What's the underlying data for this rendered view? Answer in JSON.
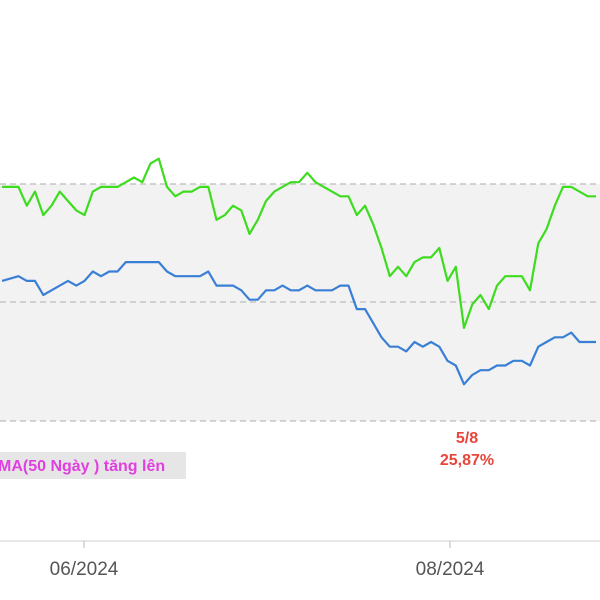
{
  "chart_data": {
    "type": "line",
    "colors": {
      "series_upper": "#3ddc1f",
      "series_lower": "#3a7fd6",
      "band_fill": "#f2f2f2",
      "gridline": "#bbbbbb",
      "annotation": "#e8453c",
      "legend_text": "#e040e0",
      "legend_bg": "#e6e6e6"
    },
    "x_ticks": [
      "06/2024",
      "08/2024"
    ],
    "annotation": {
      "date": "5/8",
      "value": "25,87%"
    },
    "legend_text": "MA(50 Ngày ) tăng lên",
    "y_range": [
      0,
      100
    ],
    "series": [
      {
        "key": "upper",
        "values": [
          [
            0,
            73
          ],
          [
            2,
            73
          ],
          [
            3,
            69
          ],
          [
            4,
            72
          ],
          [
            5,
            67
          ],
          [
            6,
            69
          ],
          [
            7,
            72
          ],
          [
            8,
            70
          ],
          [
            9,
            68
          ],
          [
            10,
            67
          ],
          [
            11,
            72
          ],
          [
            12,
            73
          ],
          [
            13,
            73
          ],
          [
            14,
            73
          ],
          [
            15,
            74
          ],
          [
            16,
            75
          ],
          [
            17,
            74
          ],
          [
            18,
            78
          ],
          [
            19,
            79
          ],
          [
            20,
            73
          ],
          [
            21,
            71
          ],
          [
            22,
            72
          ],
          [
            23,
            72
          ],
          [
            24,
            73
          ],
          [
            25,
            73
          ],
          [
            26,
            66
          ],
          [
            27,
            67
          ],
          [
            28,
            69
          ],
          [
            29,
            68
          ],
          [
            30,
            63
          ],
          [
            31,
            66
          ],
          [
            32,
            70
          ],
          [
            33,
            72
          ],
          [
            34,
            73
          ],
          [
            35,
            74
          ],
          [
            36,
            74
          ],
          [
            37,
            76
          ],
          [
            38,
            74
          ],
          [
            39,
            73
          ],
          [
            40,
            72
          ],
          [
            41,
            71
          ],
          [
            42,
            71
          ],
          [
            43,
            67
          ],
          [
            44,
            69
          ],
          [
            45,
            65
          ],
          [
            46,
            60
          ],
          [
            47,
            54
          ],
          [
            48,
            56
          ],
          [
            49,
            54
          ],
          [
            50,
            57
          ],
          [
            51,
            58
          ],
          [
            52,
            58
          ],
          [
            53,
            60
          ],
          [
            54,
            53
          ],
          [
            55,
            56
          ],
          [
            56,
            43
          ],
          [
            57,
            48
          ],
          [
            58,
            50
          ],
          [
            59,
            47
          ],
          [
            60,
            52
          ],
          [
            61,
            54
          ],
          [
            62,
            54
          ],
          [
            63,
            54
          ],
          [
            64,
            51
          ],
          [
            65,
            61
          ],
          [
            66,
            64
          ],
          [
            67,
            69
          ],
          [
            68,
            73
          ],
          [
            69,
            73
          ],
          [
            70,
            72
          ],
          [
            71,
            71
          ],
          [
            72,
            71
          ]
        ]
      },
      {
        "key": "lower",
        "values": [
          [
            0,
            53
          ],
          [
            2,
            54
          ],
          [
            3,
            53
          ],
          [
            4,
            53
          ],
          [
            5,
            50
          ],
          [
            6,
            51
          ],
          [
            7,
            52
          ],
          [
            8,
            53
          ],
          [
            9,
            52
          ],
          [
            10,
            53
          ],
          [
            11,
            55
          ],
          [
            12,
            54
          ],
          [
            13,
            55
          ],
          [
            14,
            55
          ],
          [
            15,
            57
          ],
          [
            16,
            57
          ],
          [
            17,
            57
          ],
          [
            18,
            57
          ],
          [
            19,
            57
          ],
          [
            20,
            55
          ],
          [
            21,
            54
          ],
          [
            22,
            54
          ],
          [
            23,
            54
          ],
          [
            24,
            54
          ],
          [
            25,
            55
          ],
          [
            26,
            52
          ],
          [
            27,
            52
          ],
          [
            28,
            52
          ],
          [
            29,
            51
          ],
          [
            30,
            49
          ],
          [
            31,
            49
          ],
          [
            32,
            51
          ],
          [
            33,
            51
          ],
          [
            34,
            52
          ],
          [
            35,
            51
          ],
          [
            36,
            51
          ],
          [
            37,
            52
          ],
          [
            38,
            51
          ],
          [
            39,
            51
          ],
          [
            40,
            51
          ],
          [
            41,
            52
          ],
          [
            42,
            52
          ],
          [
            43,
            47
          ],
          [
            44,
            47
          ],
          [
            45,
            44
          ],
          [
            46,
            41
          ],
          [
            47,
            39
          ],
          [
            48,
            39
          ],
          [
            49,
            38
          ],
          [
            50,
            40
          ],
          [
            51,
            39
          ],
          [
            52,
            40
          ],
          [
            53,
            39
          ],
          [
            54,
            36
          ],
          [
            55,
            35
          ],
          [
            56,
            31
          ],
          [
            57,
            33
          ],
          [
            58,
            34
          ],
          [
            59,
            34
          ],
          [
            60,
            35
          ],
          [
            61,
            35
          ],
          [
            62,
            36
          ],
          [
            63,
            36
          ],
          [
            64,
            35
          ],
          [
            65,
            39
          ],
          [
            66,
            40
          ],
          [
            67,
            41
          ],
          [
            68,
            41
          ],
          [
            69,
            42
          ],
          [
            70,
            40
          ],
          [
            71,
            40
          ],
          [
            72,
            40
          ]
        ]
      }
    ]
  }
}
